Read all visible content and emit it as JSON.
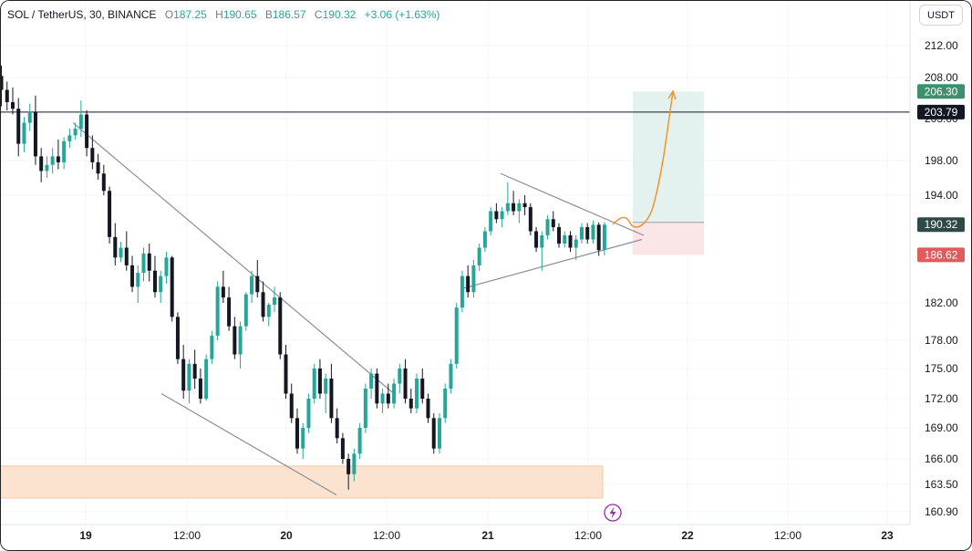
{
  "header": {
    "symbol": "SOL / TetherUS, 30, BINANCE",
    "open_label": "O",
    "open": "187.25",
    "high_label": "H",
    "high": "190.65",
    "low_label": "B",
    "low": "186.57",
    "close_label": "C",
    "close": "190.32",
    "change": "+3.06 (+1.63%)"
  },
  "currency_button": "USDT",
  "chart_data": {
    "type": "candlestick",
    "price_axis": {
      "ticks": [
        "212.00",
        "208.00",
        "203.00",
        "198.00",
        "194.00",
        "190.32",
        "186.62",
        "182.00",
        "178.00",
        "175.00",
        "172.00",
        "169.00",
        "166.00",
        "163.50",
        "160.90"
      ],
      "tick_values": [
        212.0,
        208.0,
        203.0,
        198.0,
        194.0,
        190.32,
        186.62,
        182.0,
        178.0,
        175.0,
        172.0,
        169.0,
        166.0,
        163.5,
        160.9
      ]
    },
    "time_axis": {
      "labels": [
        "19",
        "12:00",
        "20",
        "12:00",
        "21",
        "12:00",
        "22",
        "12:00",
        "23"
      ],
      "bold": [
        true,
        false,
        true,
        false,
        true,
        false,
        true,
        false,
        true
      ]
    },
    "badges": [
      {
        "text": "206.30",
        "price": 206.3,
        "color": "#3f8f6f"
      },
      {
        "text": "203.79",
        "price": 203.79,
        "color": "#131722"
      },
      {
        "text": "190.32",
        "price": 190.32,
        "color": "#2e4a48"
      },
      {
        "text": "186.62",
        "price": 186.62,
        "color": "#e05c5c"
      }
    ],
    "horizontal_line": {
      "price": 203.79,
      "color": "#131722"
    },
    "long_position": {
      "entry": 190.6,
      "target": 206.3,
      "stop": 186.62
    },
    "support_zone": {
      "top": 165.3,
      "bottom": 162.2
    },
    "candles": [
      [
        208.2,
        209.5,
        204.5,
        206.5
      ],
      [
        206.5,
        207.5,
        204.0,
        205.0
      ],
      [
        205.0,
        206.8,
        203.5,
        204.2
      ],
      [
        204.2,
        205.5,
        198.5,
        200.0
      ],
      [
        200.0,
        203.2,
        199.0,
        202.5
      ],
      [
        202.5,
        204.8,
        201.5,
        203.8
      ],
      [
        203.8,
        205.8,
        197.5,
        198.5
      ],
      [
        198.5,
        199.5,
        195.5,
        196.8
      ],
      [
        196.8,
        198.5,
        196.0,
        197.5
      ],
      [
        197.5,
        199.5,
        196.5,
        198.5
      ],
      [
        198.5,
        200.5,
        197.0,
        197.8
      ],
      [
        197.8,
        200.8,
        197.0,
        200.3
      ],
      [
        200.3,
        201.8,
        199.5,
        201.0
      ],
      [
        201.0,
        202.5,
        200.5,
        201.8
      ],
      [
        201.8,
        205.2,
        200.8,
        203.5
      ],
      [
        203.5,
        204.0,
        198.5,
        199.5
      ],
      [
        199.5,
        201.0,
        197.0,
        197.8
      ],
      [
        197.8,
        198.8,
        195.8,
        196.5
      ],
      [
        196.5,
        197.5,
        194.0,
        194.5
      ],
      [
        194.5,
        195.0,
        188.0,
        188.8
      ],
      [
        188.8,
        190.5,
        185.5,
        186.3
      ],
      [
        186.3,
        188.2,
        185.8,
        187.5
      ],
      [
        187.5,
        189.5,
        185.0,
        185.5
      ],
      [
        185.5,
        186.5,
        183.0,
        183.5
      ],
      [
        183.5,
        185.5,
        182.0,
        184.8
      ],
      [
        184.8,
        187.5,
        184.0,
        186.8
      ],
      [
        186.8,
        188.0,
        184.0,
        185.0
      ],
      [
        185.0,
        186.5,
        182.5,
        183.0
      ],
      [
        183.0,
        185.0,
        182.0,
        184.5
      ],
      [
        184.5,
        187.0,
        183.8,
        186.3
      ],
      [
        186.3,
        186.5,
        180.0,
        180.5
      ],
      [
        180.5,
        181.0,
        175.5,
        176.0
      ],
      [
        176.0,
        177.5,
        172.0,
        172.8
      ],
      [
        172.8,
        176.0,
        171.5,
        175.5
      ],
      [
        175.5,
        177.0,
        173.0,
        174.0
      ],
      [
        174.0,
        175.0,
        171.5,
        172.0
      ],
      [
        172.0,
        176.5,
        171.8,
        176.0
      ],
      [
        176.0,
        179.0,
        175.5,
        178.5
      ],
      [
        178.5,
        184.0,
        178.0,
        183.5
      ],
      [
        183.5,
        185.0,
        182.0,
        182.5
      ],
      [
        182.5,
        183.5,
        179.0,
        179.5
      ],
      [
        179.5,
        180.5,
        176.0,
        176.5
      ],
      [
        176.5,
        180.0,
        175.0,
        179.5
      ],
      [
        179.5,
        183.0,
        179.0,
        182.8
      ],
      [
        182.8,
        185.0,
        182.0,
        184.5
      ],
      [
        184.5,
        186.0,
        182.5,
        183.0
      ],
      [
        183.0,
        184.0,
        180.0,
        180.5
      ],
      [
        180.5,
        182.0,
        179.5,
        181.8
      ],
      [
        181.8,
        183.5,
        181.0,
        182.5
      ],
      [
        182.5,
        183.0,
        176.0,
        176.5
      ],
      [
        176.5,
        177.5,
        172.0,
        172.5
      ],
      [
        172.5,
        173.5,
        169.5,
        170.0
      ],
      [
        170.0,
        171.0,
        166.5,
        167.0
      ],
      [
        167.0,
        169.5,
        166.0,
        169.0
      ],
      [
        169.0,
        172.5,
        168.5,
        172.0
      ],
      [
        172.0,
        175.5,
        171.5,
        175.0
      ],
      [
        175.0,
        176.0,
        172.0,
        172.5
      ],
      [
        172.5,
        174.5,
        170.5,
        174.0
      ],
      [
        174.0,
        175.5,
        169.5,
        170.0
      ],
      [
        170.0,
        171.0,
        167.5,
        168.0
      ],
      [
        168.0,
        168.5,
        165.5,
        166.0
      ],
      [
        166.0,
        166.5,
        163.0,
        164.5
      ],
      [
        164.5,
        167.0,
        163.8,
        166.5
      ],
      [
        166.5,
        169.5,
        166.0,
        169.0
      ],
      [
        169.0,
        173.5,
        168.5,
        173.0
      ],
      [
        173.0,
        175.0,
        172.0,
        174.5
      ],
      [
        174.5,
        175.0,
        171.0,
        171.5
      ],
      [
        171.5,
        173.0,
        170.5,
        172.5
      ],
      [
        172.5,
        173.5,
        171.0,
        171.5
      ],
      [
        171.5,
        174.0,
        171.0,
        173.5
      ],
      [
        173.5,
        175.5,
        172.5,
        175.0
      ],
      [
        175.0,
        176.0,
        171.5,
        172.0
      ],
      [
        172.0,
        173.0,
        170.5,
        171.0
      ],
      [
        171.0,
        174.5,
        170.5,
        174.0
      ],
      [
        174.0,
        175.0,
        171.5,
        172.0
      ],
      [
        172.0,
        172.5,
        169.5,
        170.0
      ],
      [
        170.0,
        170.5,
        166.5,
        167.0
      ],
      [
        167.0,
        170.5,
        166.5,
        170.0
      ],
      [
        170.0,
        173.5,
        169.5,
        173.0
      ],
      [
        173.0,
        176.0,
        172.5,
        175.5
      ],
      [
        175.5,
        182.0,
        175.0,
        181.5
      ],
      [
        181.5,
        185.0,
        181.0,
        184.5
      ],
      [
        184.5,
        185.5,
        182.5,
        183.0
      ],
      [
        183.0,
        186.0,
        182.5,
        185.5
      ],
      [
        185.5,
        188.0,
        185.0,
        187.5
      ],
      [
        187.5,
        190.0,
        187.0,
        189.5
      ],
      [
        189.5,
        192.5,
        189.0,
        192.0
      ],
      [
        192.0,
        193.0,
        190.5,
        191.0
      ],
      [
        191.0,
        192.5,
        190.0,
        192.0
      ],
      [
        192.0,
        195.5,
        191.5,
        193.0
      ],
      [
        193.0,
        194.5,
        191.5,
        192.0
      ],
      [
        192.0,
        193.5,
        190.5,
        193.0
      ],
      [
        193.0,
        194.0,
        191.5,
        192.5
      ],
      [
        192.5,
        193.0,
        189.0,
        189.5
      ],
      [
        189.5,
        190.0,
        187.0,
        187.5
      ],
      [
        187.5,
        189.5,
        185.0,
        189.0
      ],
      [
        189.0,
        191.5,
        188.5,
        191.0
      ],
      [
        191.0,
        192.0,
        189.5,
        190.0
      ],
      [
        190.0,
        190.5,
        187.5,
        188.0
      ],
      [
        188.0,
        189.5,
        187.5,
        189.0
      ],
      [
        189.0,
        189.5,
        187.0,
        187.5
      ],
      [
        187.5,
        189.0,
        186.0,
        188.5
      ],
      [
        188.5,
        190.5,
        188.0,
        190.0
      ],
      [
        190.0,
        190.5,
        188.0,
        188.5
      ],
      [
        188.5,
        190.8,
        188.0,
        190.3
      ],
      [
        190.3,
        190.6,
        186.5,
        187.2
      ],
      [
        187.25,
        190.65,
        186.57,
        190.32
      ]
    ],
    "trend_lines": [
      {
        "from": [
          202.5,
          0
        ],
        "to": [
          172.5,
          1
        ]
      },
      {
        "from": [
          172.5,
          0
        ],
        "to": [
          162.5,
          1
        ]
      },
      {
        "from": [
          196.5,
          0
        ],
        "to": [
          189.0,
          1
        ]
      },
      {
        "from": [
          183.3,
          0
        ],
        "to": [
          188.5,
          1
        ]
      }
    ],
    "colors": {
      "up": "#26a69a",
      "down": "#131722",
      "target_zone": "#e3f2ee",
      "stop_zone": "#fbe6e7",
      "support_zone": "#fbe3cf",
      "projection": "#f0932b"
    }
  }
}
